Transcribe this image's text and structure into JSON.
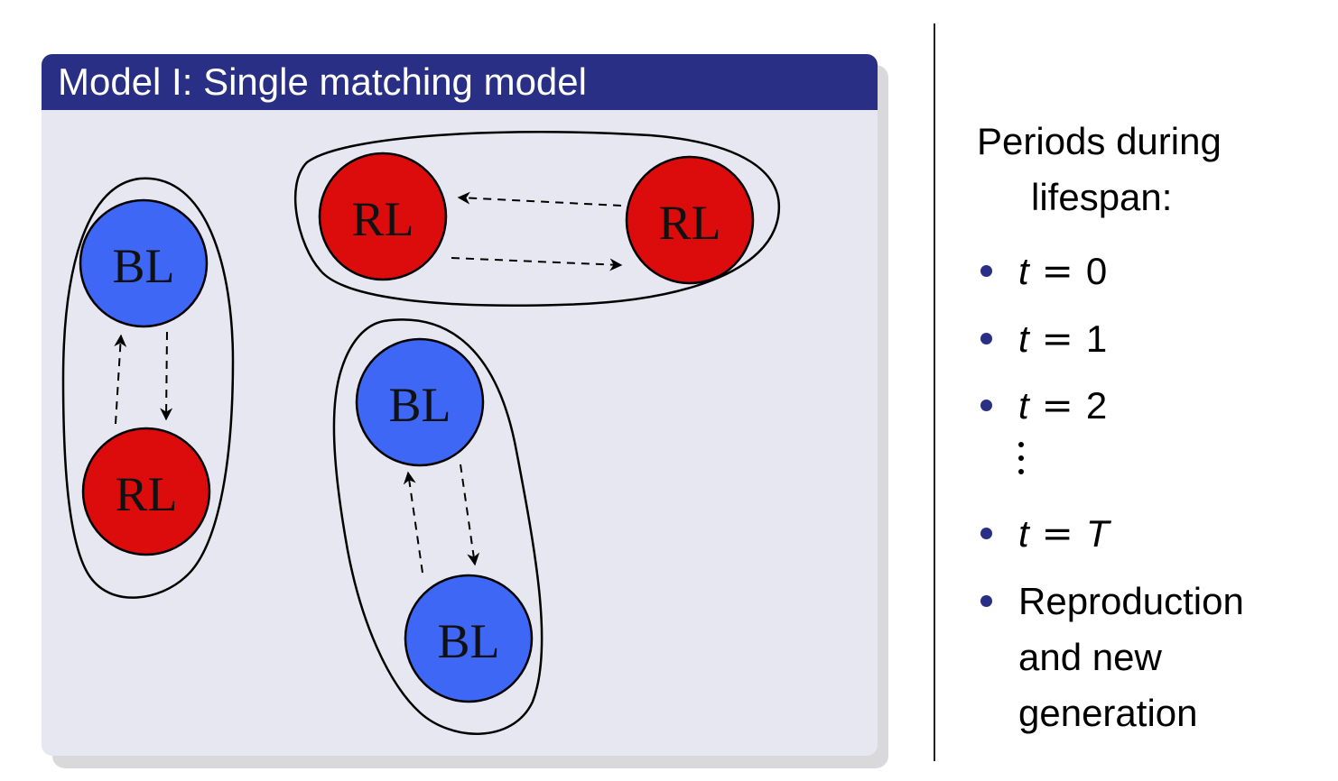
{
  "block": {
    "title": "Model I: Single matching model"
  },
  "diagram": {
    "node_labels": {
      "bl": "BL",
      "rl": "RL"
    },
    "colors": {
      "bl": "#3d67f4",
      "rl": "#dc0c0c",
      "header": "#2a2f86",
      "block_bg": "#e7e7f1"
    },
    "groups": [
      {
        "nodes": [
          "BL",
          "RL"
        ]
      },
      {
        "nodes": [
          "RL",
          "RL"
        ]
      },
      {
        "nodes": [
          "BL",
          "BL"
        ]
      }
    ]
  },
  "side": {
    "heading_line1": "Periods during",
    "heading_line2": "lifespan:",
    "items": [
      {
        "var": "t",
        "eq": "=",
        "val": "0"
      },
      {
        "var": "t",
        "eq": "=",
        "val": "1"
      },
      {
        "var": "t",
        "eq": "=",
        "val": "2"
      },
      {
        "var": "t",
        "eq": "=",
        "val": "T"
      }
    ],
    "last_item": {
      "line1": "Reproduction",
      "line2": "and new",
      "line3": "generation"
    }
  }
}
